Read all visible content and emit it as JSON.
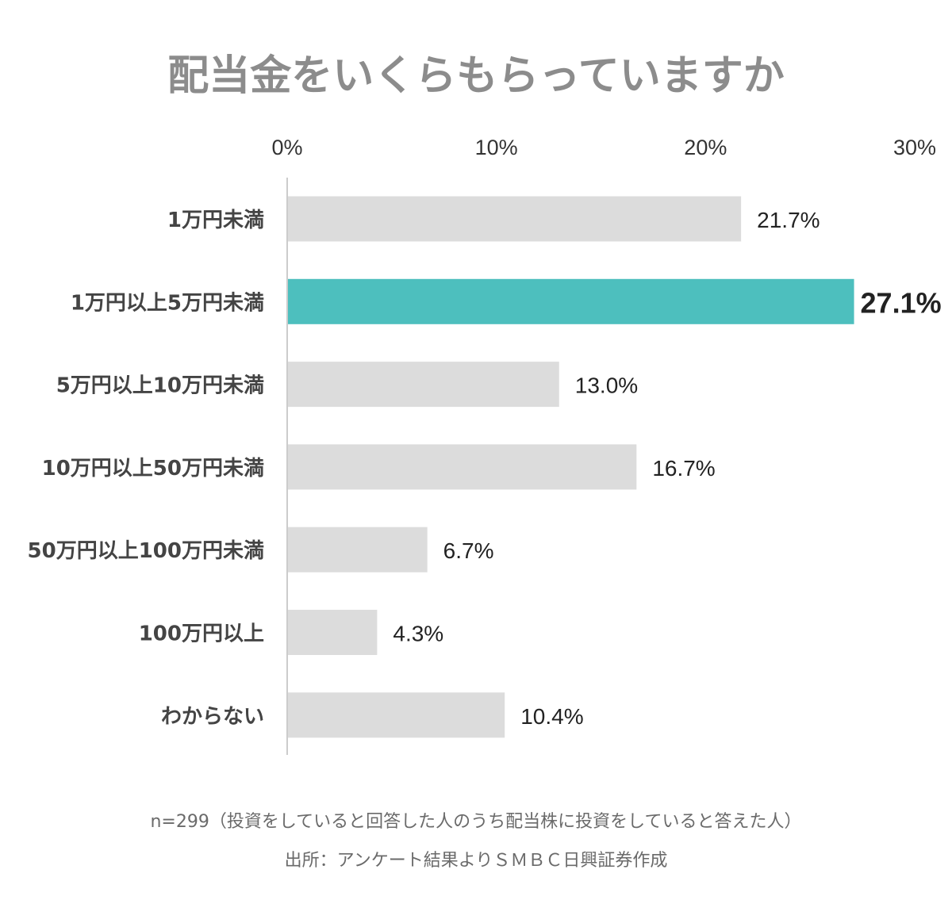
{
  "chart_data": {
    "type": "bar",
    "orientation": "horizontal",
    "title": "配当金をいくらもらっていますか",
    "categories": [
      "1万円未満",
      "1万円以上5万円未満",
      "5万円以上10万円未満",
      "10万円以上50万円未満",
      "50万円以上100万円未満",
      "100万円以上",
      "わからない"
    ],
    "values": [
      21.7,
      27.1,
      13.0,
      16.7,
      6.7,
      4.3,
      10.4
    ],
    "value_labels": [
      "21.7%",
      "27.1%",
      "13.0%",
      "16.7%",
      "6.7%",
      "4.3%",
      "10.4%"
    ],
    "highlight_index": 1,
    "xlim": [
      0,
      30
    ],
    "x_ticks": [
      0,
      10,
      20,
      30
    ],
    "x_tick_labels": [
      "0%",
      "10%",
      "20%",
      "30%"
    ],
    "axis_position": "top",
    "grid": false,
    "colors": {
      "bar": "#dcdcdc",
      "highlight": "#4dbfbe",
      "title": "#8c8c8c",
      "axis": "#cccccc"
    }
  },
  "notes": {
    "sample": "n=299（投資をしていると回答した人のうち配当株に投資をしていると答えた人）",
    "source": "出所：アンケート結果よりＳＭＢＣ日興証券作成"
  }
}
